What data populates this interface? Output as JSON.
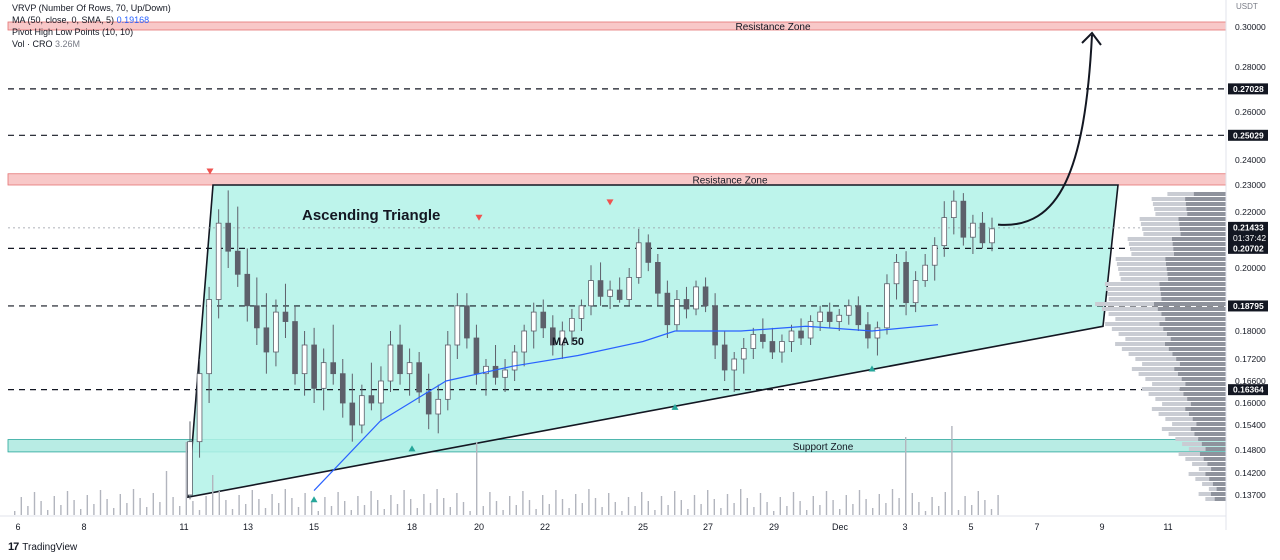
{
  "legend": {
    "vrvp": "VRVP (Number Of Rows, 70, Up/Down)",
    "ma_label": "MA (50, close, 0, SMA, 5)",
    "ma_value": "0.19168",
    "pivot": "Pivot High Low Points (10, 10)",
    "vol_label": "Vol · CRO",
    "vol_value": "3.26M"
  },
  "currency": "USDT",
  "footer": {
    "brand": "TradingView"
  },
  "colors": {
    "up": "#26a69a",
    "down": "#ef5350",
    "candle": "#787b86",
    "triangle_fill": "#b2f2e8",
    "resistance": "#f8c8c8",
    "support": "#b8ece4",
    "ma": "#2962ff",
    "dark": "#131722"
  },
  "chart_data": {
    "type": "candlestick",
    "title": "",
    "y_axis": {
      "range": [
        0.135,
        0.3075
      ],
      "ticks": [
        "0.30000",
        "0.28000",
        "0.26000",
        "0.24000",
        "0.23000",
        "0.22000",
        "0.20000",
        "0.18000",
        "0.17200",
        "0.16600",
        "0.16000",
        "0.15400",
        "0.14800",
        "0.14200",
        "0.13700"
      ],
      "highlighted": [
        "0.27028",
        "0.25029",
        "0.21433",
        "0.20702",
        "0.18795",
        "0.16364"
      ],
      "current_price": "0.21433",
      "countdown": "01:37:42"
    },
    "x_axis": {
      "ticks": [
        "6",
        "8",
        "11",
        "13",
        "15",
        "18",
        "20",
        "22",
        "25",
        "27",
        "29",
        "Dec",
        "3",
        "5",
        "7",
        "9",
        "11"
      ]
    },
    "horizontal_levels": [
      0.27028,
      0.25029,
      0.20702,
      0.18795,
      0.16364
    ],
    "zones": [
      {
        "label": "Resistance Zone",
        "low": 0.2985,
        "high": 0.3025
      },
      {
        "label": "Resistance Zone",
        "low": 0.23,
        "high": 0.2345
      },
      {
        "label": "Support Zone",
        "low": 0.1475,
        "high": 0.1505
      }
    ],
    "pattern": {
      "label": "Ascending Triangle",
      "vertices": [
        [
          "11",
          0.1365
        ],
        [
          "11",
          0.23
        ],
        [
          "9",
          0.23
        ],
        [
          "9",
          0.1815
        ]
      ],
      "support_line": [
        [
          "11",
          0.1365
        ],
        [
          "9",
          0.1815
        ]
      ]
    },
    "ma_label": "MA 50",
    "ma_series": [
      [
        "15",
        0.138
      ],
      [
        "17",
        0.155
      ],
      [
        "19",
        0.166
      ],
      [
        "21",
        0.17
      ],
      [
        "23",
        0.173
      ],
      [
        "25",
        0.177
      ],
      [
        "26",
        0.18
      ],
      [
        "28",
        0.18
      ],
      [
        "30",
        0.1815
      ],
      [
        "Dec 2",
        0.18
      ],
      [
        "Dec 4",
        0.182
      ],
      [
        "Dec 5",
        0.19
      ]
    ],
    "pivots": {
      "high": [
        [
          "11",
          0.231
        ],
        [
          "20",
          0.214
        ],
        [
          "24",
          0.2195
        ]
      ],
      "low": [
        [
          "15",
          0.139
        ],
        [
          "18",
          0.1515
        ],
        [
          "26",
          0.1625
        ],
        [
          "Dec 2",
          0.173
        ]
      ]
    },
    "projection": {
      "from": [
        "5",
        0.2155
      ],
      "to": [
        "9",
        0.296
      ]
    },
    "candles_ohlc": [
      [
        0.137,
        0.155,
        0.136,
        0.15
      ],
      [
        0.15,
        0.172,
        0.146,
        0.168
      ],
      [
        0.168,
        0.194,
        0.16,
        0.19
      ],
      [
        0.19,
        0.221,
        0.184,
        0.216
      ],
      [
        0.216,
        0.228,
        0.2,
        0.206
      ],
      [
        0.206,
        0.222,
        0.194,
        0.198
      ],
      [
        0.198,
        0.207,
        0.183,
        0.188
      ],
      [
        0.188,
        0.197,
        0.176,
        0.181
      ],
      [
        0.181,
        0.192,
        0.168,
        0.174
      ],
      [
        0.174,
        0.19,
        0.17,
        0.186
      ],
      [
        0.186,
        0.195,
        0.178,
        0.183
      ],
      [
        0.183,
        0.188,
        0.165,
        0.168
      ],
      [
        0.168,
        0.18,
        0.162,
        0.176
      ],
      [
        0.176,
        0.181,
        0.16,
        0.164
      ],
      [
        0.164,
        0.175,
        0.158,
        0.171
      ],
      [
        0.171,
        0.182,
        0.165,
        0.168
      ],
      [
        0.168,
        0.172,
        0.156,
        0.16
      ],
      [
        0.16,
        0.168,
        0.15,
        0.154
      ],
      [
        0.154,
        0.165,
        0.152,
        0.162
      ],
      [
        0.162,
        0.171,
        0.158,
        0.16
      ],
      [
        0.16,
        0.17,
        0.155,
        0.166
      ],
      [
        0.166,
        0.18,
        0.163,
        0.176
      ],
      [
        0.176,
        0.182,
        0.165,
        0.168
      ],
      [
        0.168,
        0.175,
        0.162,
        0.171
      ],
      [
        0.171,
        0.174,
        0.16,
        0.163
      ],
      [
        0.163,
        0.168,
        0.153,
        0.157
      ],
      [
        0.157,
        0.165,
        0.152,
        0.161
      ],
      [
        0.161,
        0.18,
        0.158,
        0.176
      ],
      [
        0.176,
        0.192,
        0.172,
        0.188
      ],
      [
        0.188,
        0.192,
        0.175,
        0.178
      ],
      [
        0.178,
        0.182,
        0.165,
        0.168
      ],
      [
        0.168,
        0.172,
        0.162,
        0.17
      ],
      [
        0.17,
        0.176,
        0.165,
        0.167
      ],
      [
        0.167,
        0.172,
        0.163,
        0.169
      ],
      [
        0.169,
        0.176,
        0.166,
        0.174
      ],
      [
        0.174,
        0.182,
        0.17,
        0.18
      ],
      [
        0.18,
        0.189,
        0.175,
        0.186
      ],
      [
        0.186,
        0.19,
        0.178,
        0.181
      ],
      [
        0.181,
        0.185,
        0.173,
        0.176
      ],
      [
        0.176,
        0.183,
        0.172,
        0.18
      ],
      [
        0.18,
        0.187,
        0.176,
        0.184
      ],
      [
        0.184,
        0.19,
        0.18,
        0.188
      ],
      [
        0.188,
        0.201,
        0.185,
        0.196
      ],
      [
        0.196,
        0.202,
        0.188,
        0.191
      ],
      [
        0.191,
        0.196,
        0.187,
        0.193
      ],
      [
        0.193,
        0.197,
        0.189,
        0.19
      ],
      [
        0.19,
        0.2,
        0.188,
        0.197
      ],
      [
        0.197,
        0.214,
        0.195,
        0.209
      ],
      [
        0.209,
        0.212,
        0.199,
        0.202
      ],
      [
        0.202,
        0.205,
        0.188,
        0.192
      ],
      [
        0.192,
        0.196,
        0.178,
        0.182
      ],
      [
        0.182,
        0.193,
        0.18,
        0.19
      ],
      [
        0.19,
        0.194,
        0.184,
        0.187
      ],
      [
        0.187,
        0.196,
        0.185,
        0.194
      ],
      [
        0.194,
        0.197,
        0.186,
        0.188
      ],
      [
        0.188,
        0.192,
        0.172,
        0.176
      ],
      [
        0.176,
        0.18,
        0.166,
        0.169
      ],
      [
        0.169,
        0.174,
        0.163,
        0.172
      ],
      [
        0.172,
        0.178,
        0.168,
        0.175
      ],
      [
        0.175,
        0.181,
        0.172,
        0.179
      ],
      [
        0.179,
        0.184,
        0.175,
        0.177
      ],
      [
        0.177,
        0.181,
        0.172,
        0.174
      ],
      [
        0.174,
        0.179,
        0.171,
        0.177
      ],
      [
        0.177,
        0.182,
        0.174,
        0.18
      ],
      [
        0.18,
        0.184,
        0.176,
        0.178
      ],
      [
        0.178,
        0.185,
        0.176,
        0.183
      ],
      [
        0.183,
        0.188,
        0.18,
        0.186
      ],
      [
        0.186,
        0.189,
        0.181,
        0.183
      ],
      [
        0.183,
        0.187,
        0.18,
        0.185
      ],
      [
        0.185,
        0.19,
        0.182,
        0.188
      ],
      [
        0.188,
        0.191,
        0.18,
        0.182
      ],
      [
        0.182,
        0.186,
        0.175,
        0.178
      ],
      [
        0.178,
        0.183,
        0.173,
        0.181
      ],
      [
        0.181,
        0.198,
        0.179,
        0.195
      ],
      [
        0.195,
        0.205,
        0.19,
        0.202
      ],
      [
        0.202,
        0.206,
        0.185,
        0.189
      ],
      [
        0.189,
        0.199,
        0.186,
        0.196
      ],
      [
        0.196,
        0.205,
        0.194,
        0.201
      ],
      [
        0.201,
        0.211,
        0.196,
        0.208
      ],
      [
        0.208,
        0.224,
        0.204,
        0.218
      ],
      [
        0.218,
        0.228,
        0.212,
        0.224
      ],
      [
        0.224,
        0.227,
        0.208,
        0.211
      ],
      [
        0.211,
        0.219,
        0.205,
        0.216
      ],
      [
        0.216,
        0.22,
        0.207,
        0.209
      ],
      [
        0.209,
        0.218,
        0.206,
        0.214
      ]
    ]
  }
}
